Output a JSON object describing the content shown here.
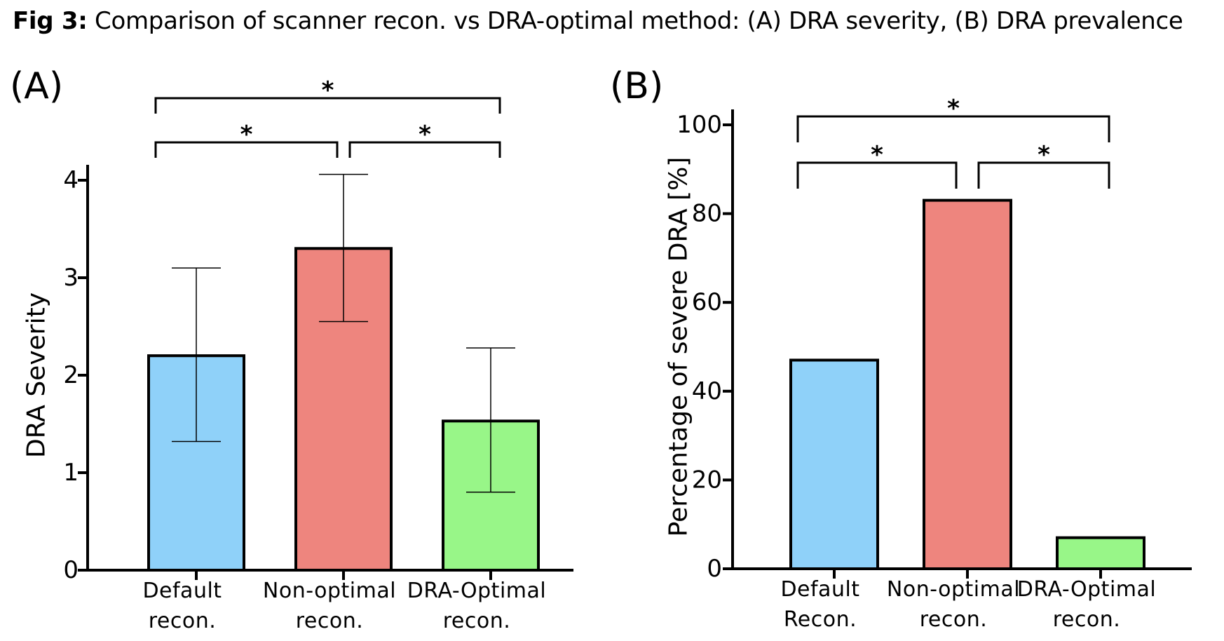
{
  "figure": {
    "title_prefix": "Fig 3:",
    "title_text": "Comparison of scanner recon. vs DRA-optimal method: (A) DRA severity, (B) DRA prevalence"
  },
  "chart_data": [
    {
      "type": "bar",
      "panel_label": "(A)",
      "categories": [
        [
          "Default",
          "recon."
        ],
        [
          "Non-optimal",
          "recon."
        ],
        [
          "DRA-Optimal",
          "recon."
        ]
      ],
      "values": [
        2.2,
        3.3,
        1.53
      ],
      "error_low": [
        1.32,
        2.55,
        0.8
      ],
      "error_high": [
        3.1,
        4.06,
        2.28
      ],
      "colors": [
        "#8fd1f9",
        "#ee857e",
        "#98f688"
      ],
      "ylabel": "DRA Severity",
      "ylim": [
        0,
        4
      ],
      "yticks": [
        0,
        1,
        2,
        3,
        4
      ],
      "significance": [
        {
          "from": 0,
          "to": 1,
          "label": "*",
          "level": 0
        },
        {
          "from": 1,
          "to": 2,
          "label": "*",
          "level": 0
        },
        {
          "from": 0,
          "to": 2,
          "label": "*",
          "level": 1
        }
      ]
    },
    {
      "type": "bar",
      "panel_label": "(B)",
      "categories": [
        [
          "Default",
          "Recon."
        ],
        [
          "Non-optimal",
          "recon."
        ],
        [
          "DRA-Optimal",
          "recon."
        ]
      ],
      "values": [
        47,
        83,
        7
      ],
      "colors": [
        "#8fd1f9",
        "#ee857e",
        "#98f688"
      ],
      "ylabel": "Percentage of severe DRA [%]",
      "ylim": [
        0,
        100
      ],
      "yticks": [
        0,
        20,
        40,
        60,
        80,
        100
      ],
      "significance": [
        {
          "from": 0,
          "to": 1,
          "label": "*",
          "level": 0
        },
        {
          "from": 1,
          "to": 2,
          "label": "*",
          "level": 0
        },
        {
          "from": 0,
          "to": 2,
          "label": "*",
          "level": 1
        }
      ]
    }
  ]
}
